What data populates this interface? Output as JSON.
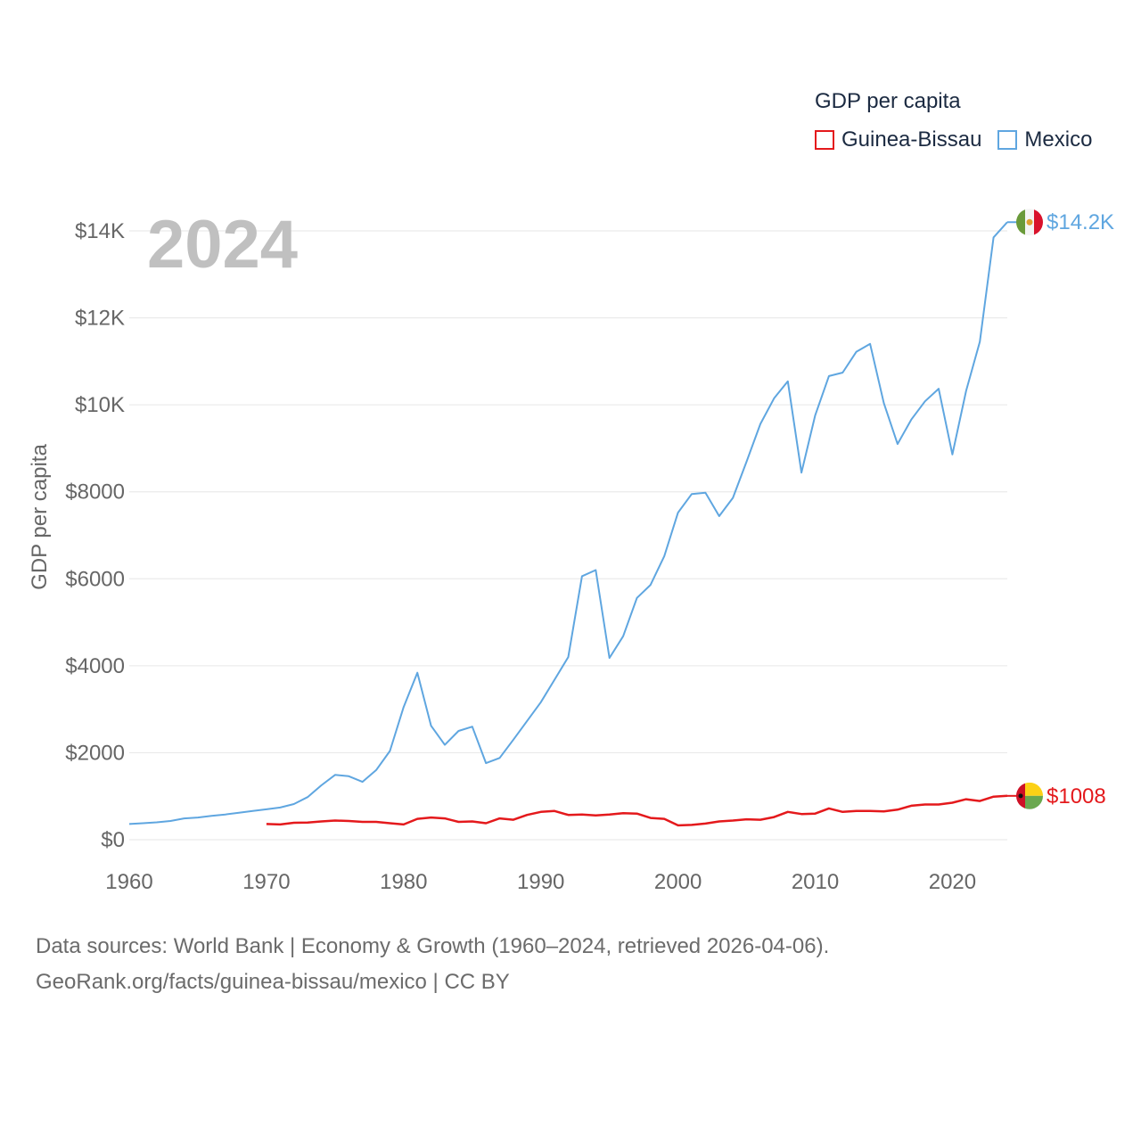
{
  "legend": {
    "title": "GDP per capita",
    "items": [
      {
        "label": "Guinea-Bissau",
        "color": "#e4191c"
      },
      {
        "label": "Mexico",
        "color": "#5fa6e0"
      }
    ]
  },
  "footer": {
    "line1": "Data sources: World Bank | Economy & Growth (1960–2024, retrieved 2026-04-06).",
    "line2": "GeoRank.org/facts/guinea-bissau/mexico | CC BY"
  },
  "chart_data": {
    "type": "line",
    "title": "GDP per capita",
    "year_label": "2024",
    "xlabel": "",
    "ylabel": "GDP per capita",
    "xlim": [
      1960,
      2024
    ],
    "ylim": [
      0,
      14500
    ],
    "x_ticks": [
      1960,
      1970,
      1980,
      1990,
      2000,
      2010,
      2020
    ],
    "y_ticks": [
      0,
      2000,
      4000,
      6000,
      8000,
      10000,
      12000,
      14000
    ],
    "y_tick_labels": [
      "$0",
      "$2000",
      "$4000",
      "$6000",
      "$8000",
      "$10K",
      "$12K",
      "$14K"
    ],
    "series": [
      {
        "name": "Mexico",
        "color": "#5fa6e0",
        "end_label": "$14.2K",
        "flag": "mexico-flag-icon",
        "x": [
          1960,
          1961,
          1962,
          1963,
          1964,
          1965,
          1966,
          1967,
          1968,
          1969,
          1970,
          1971,
          1972,
          1973,
          1974,
          1975,
          1976,
          1977,
          1978,
          1979,
          1980,
          1981,
          1982,
          1983,
          1984,
          1985,
          1986,
          1987,
          1988,
          1989,
          1990,
          1991,
          1992,
          1993,
          1994,
          1995,
          1996,
          1997,
          1998,
          1999,
          2000,
          2001,
          2002,
          2003,
          2004,
          2005,
          2006,
          2007,
          2008,
          2009,
          2010,
          2011,
          2012,
          2013,
          2014,
          2015,
          2016,
          2017,
          2018,
          2019,
          2020,
          2021,
          2022,
          2023,
          2024
        ],
        "values": [
          360,
          380,
          400,
          430,
          490,
          510,
          550,
          580,
          620,
          660,
          700,
          740,
          820,
          980,
          1250,
          1490,
          1460,
          1330,
          1600,
          2040,
          3050,
          3840,
          2620,
          2180,
          2500,
          2600,
          1760,
          1880,
          2300,
          2730,
          3160,
          3680,
          4200,
          6060,
          6200,
          4180,
          4680,
          5560,
          5860,
          6520,
          7520,
          7950,
          7980,
          7440,
          7860,
          8700,
          9560,
          10150,
          10540,
          8440,
          9760,
          10660,
          10740,
          11220,
          11400,
          10040,
          9100,
          9660,
          10080,
          10370,
          8860,
          10320,
          11450,
          13850,
          14200
        ]
      },
      {
        "name": "Guinea-Bissau",
        "color": "#e4191c",
        "end_label": "$1008",
        "flag": "guinea-bissau-flag-icon",
        "x": [
          1970,
          1971,
          1972,
          1973,
          1974,
          1975,
          1976,
          1977,
          1978,
          1979,
          1980,
          1981,
          1982,
          1983,
          1984,
          1985,
          1986,
          1987,
          1988,
          1989,
          1990,
          1991,
          1992,
          1993,
          1994,
          1995,
          1996,
          1997,
          1998,
          1999,
          2000,
          2001,
          2002,
          2003,
          2004,
          2005,
          2006,
          2007,
          2008,
          2009,
          2010,
          2011,
          2012,
          2013,
          2014,
          2015,
          2016,
          2017,
          2018,
          2019,
          2020,
          2021,
          2022,
          2023,
          2024
        ],
        "values": [
          360,
          350,
          390,
          395,
          420,
          440,
          430,
          410,
          410,
          380,
          350,
          480,
          510,
          490,
          410,
          420,
          380,
          490,
          460,
          570,
          640,
          660,
          570,
          580,
          560,
          580,
          610,
          600,
          500,
          480,
          330,
          340,
          370,
          420,
          440,
          470,
          460,
          520,
          640,
          590,
          600,
          720,
          640,
          660,
          660,
          650,
          690,
          780,
          810,
          810,
          850,
          930,
          890,
          990,
          1008
        ]
      }
    ]
  }
}
